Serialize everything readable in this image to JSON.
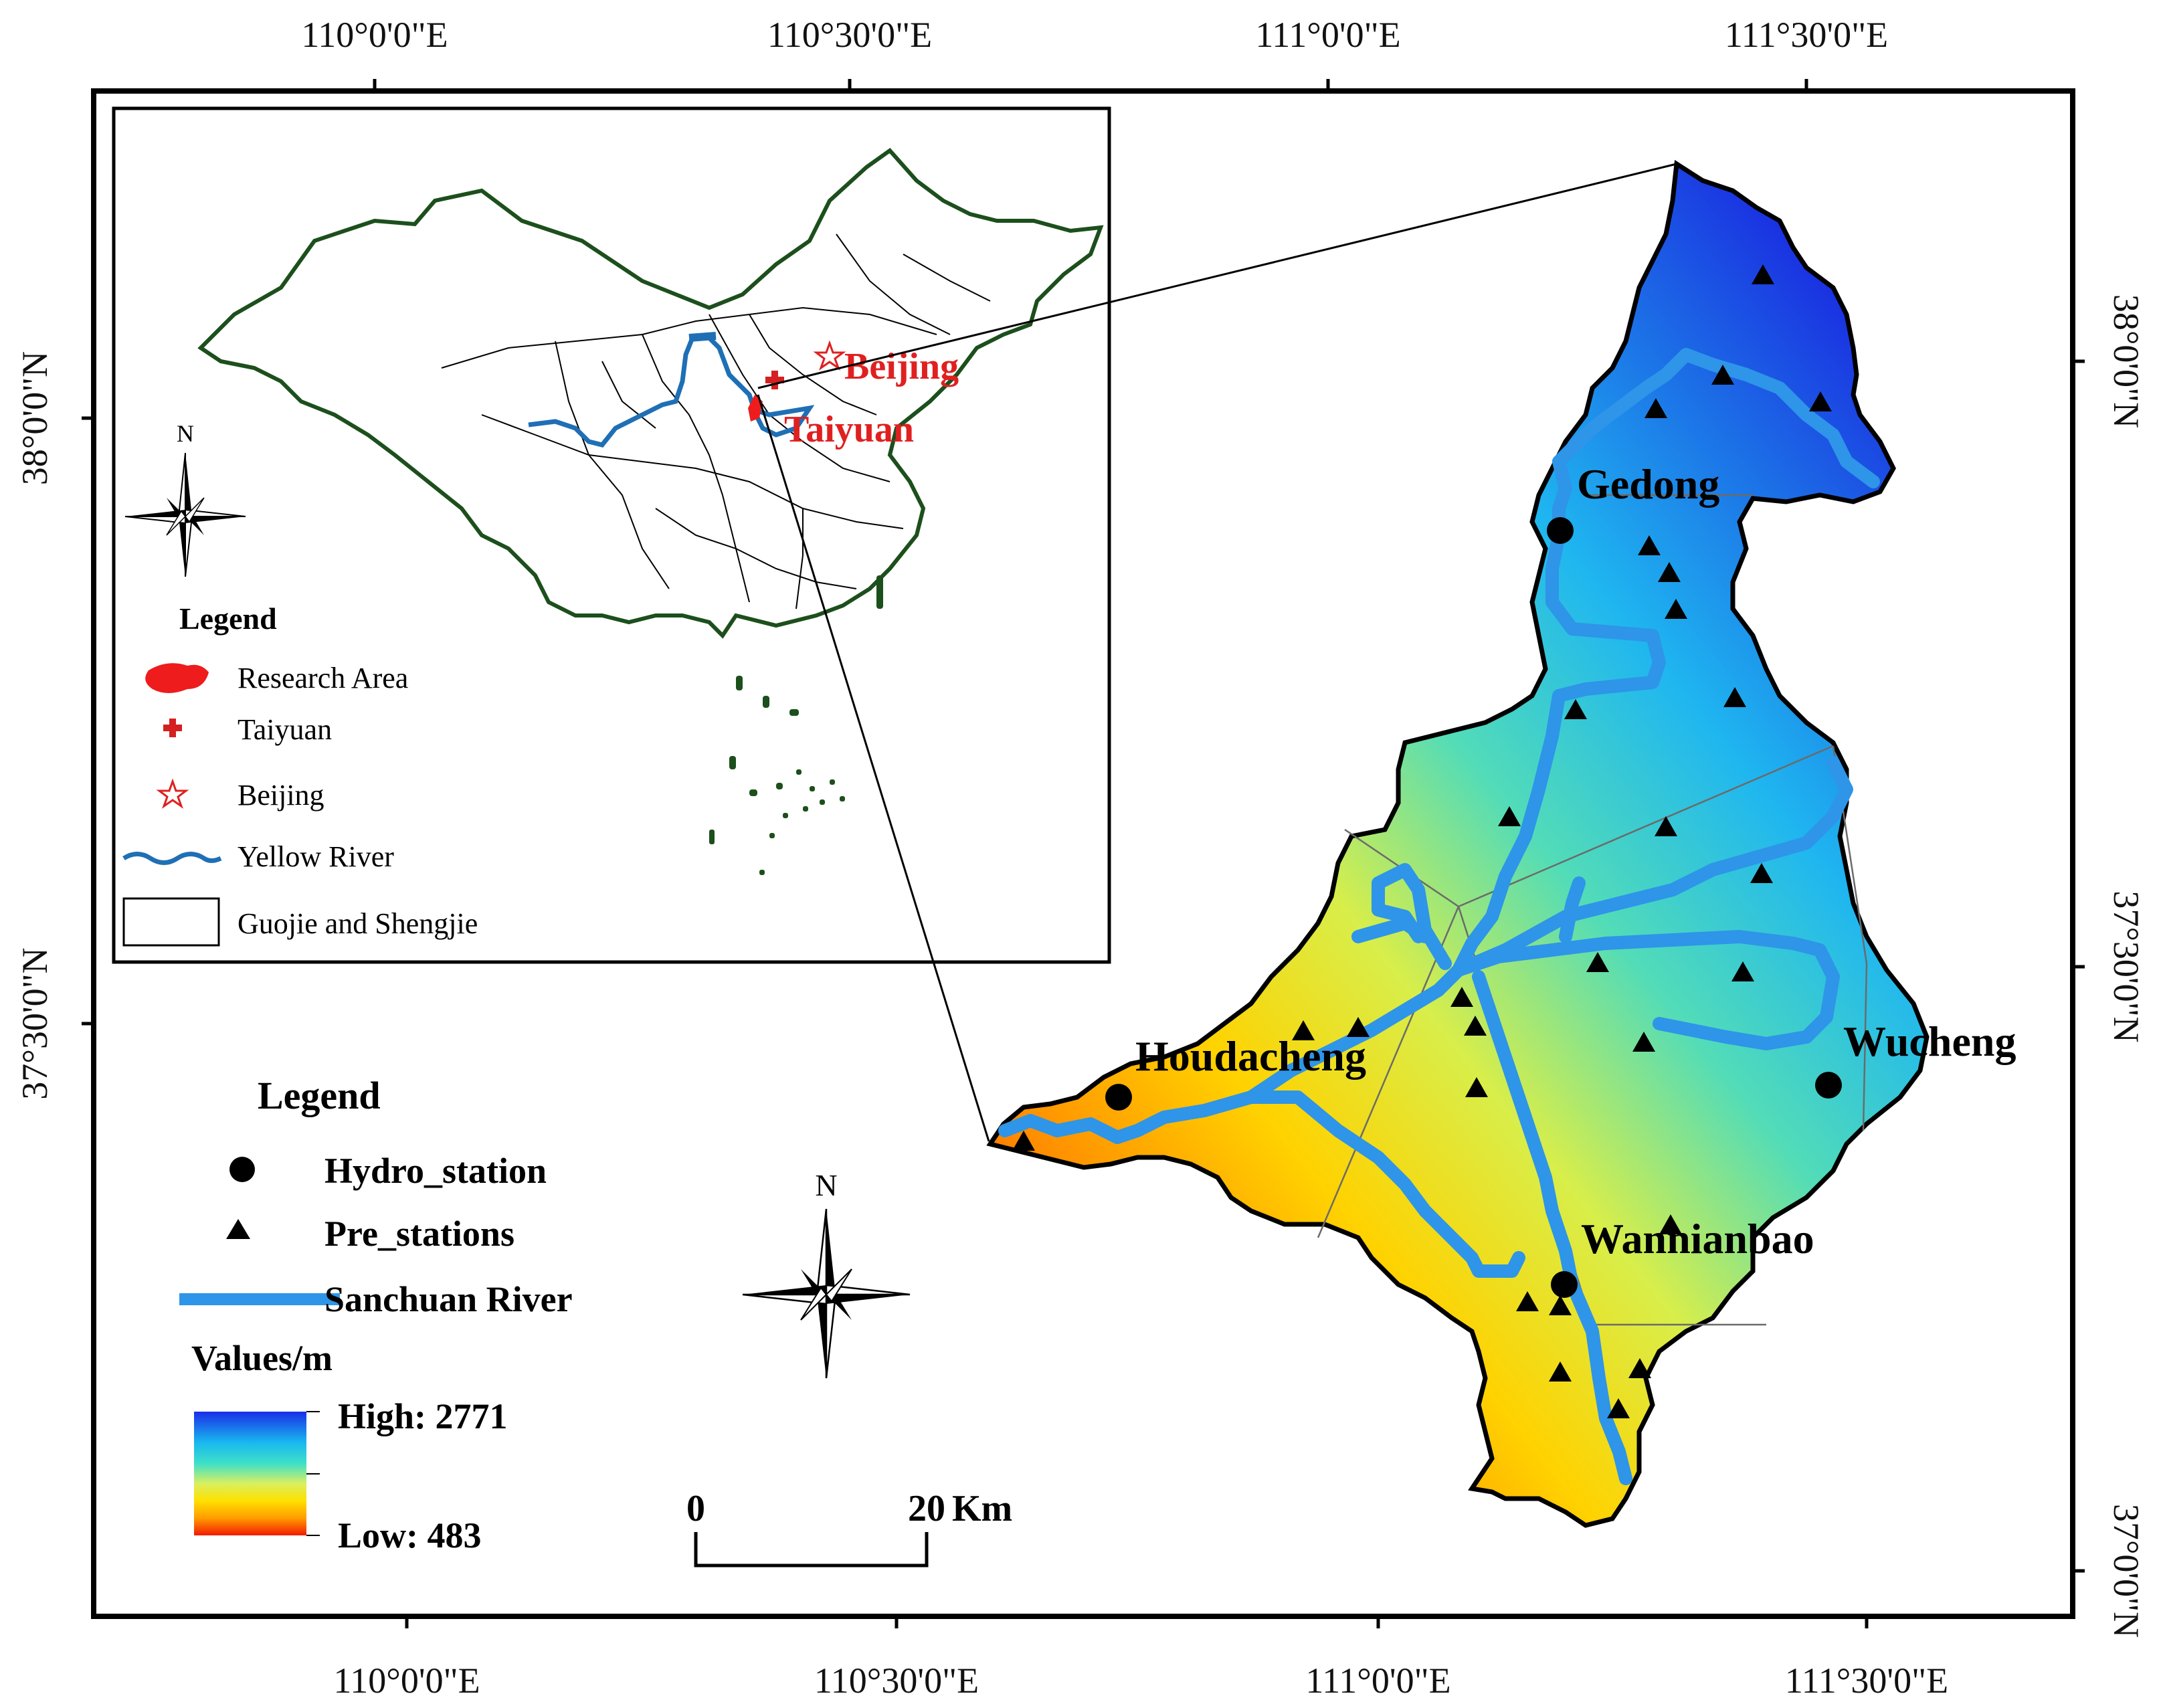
{
  "coordinates": {
    "top": [
      "110°0'0\"E",
      "110°30'0\"E",
      "111°0'0\"E",
      "111°30'0\"E"
    ],
    "bottom": [
      "110°0'0\"E",
      "110°30'0\"E",
      "111°0'0\"E",
      "111°30'0\"E"
    ],
    "left": [
      "38°0'0\"N",
      "37°30'0\"N"
    ],
    "right": [
      "38°0'0\"N",
      "37°30'0\"N",
      "37°0'0\"N"
    ]
  },
  "inset": {
    "labels": {
      "beijing": "Beijing",
      "taiyuan": "Taiyuan"
    },
    "north": "N",
    "legend": {
      "title": "Legend",
      "items": [
        {
          "label": "Research Area",
          "color": "#ee1c1c"
        },
        {
          "label": "Taiyuan",
          "color": "#d42020"
        },
        {
          "label": "Beijing",
          "color": "#e02020"
        },
        {
          "label": "Yellow River",
          "color": "#1f6fb5"
        },
        {
          "label": "Guojie and Shengjie",
          "color": "#000000"
        }
      ]
    }
  },
  "stations": {
    "hydro": [
      "Gedong",
      "Houdacheng",
      "Wucheng",
      "Wannianbao"
    ]
  },
  "legend": {
    "title": "Legend",
    "hydro_label": "Hydro_station",
    "pre_label": "Pre_stations",
    "river_label": "Sanchuan River",
    "river_color": "#2e95e8",
    "values_title": "Values/m",
    "high_label": "High: 2771",
    "low_label": "Low: 483",
    "ramp_colors": [
      "#1a2ee8",
      "#19b8f0",
      "#3ee0c8",
      "#d8f060",
      "#ffe000",
      "#ff9c00",
      "#f21a00"
    ]
  },
  "north_arrow": "N",
  "scale": {
    "start": "0",
    "end": "20",
    "unit": "Km"
  }
}
